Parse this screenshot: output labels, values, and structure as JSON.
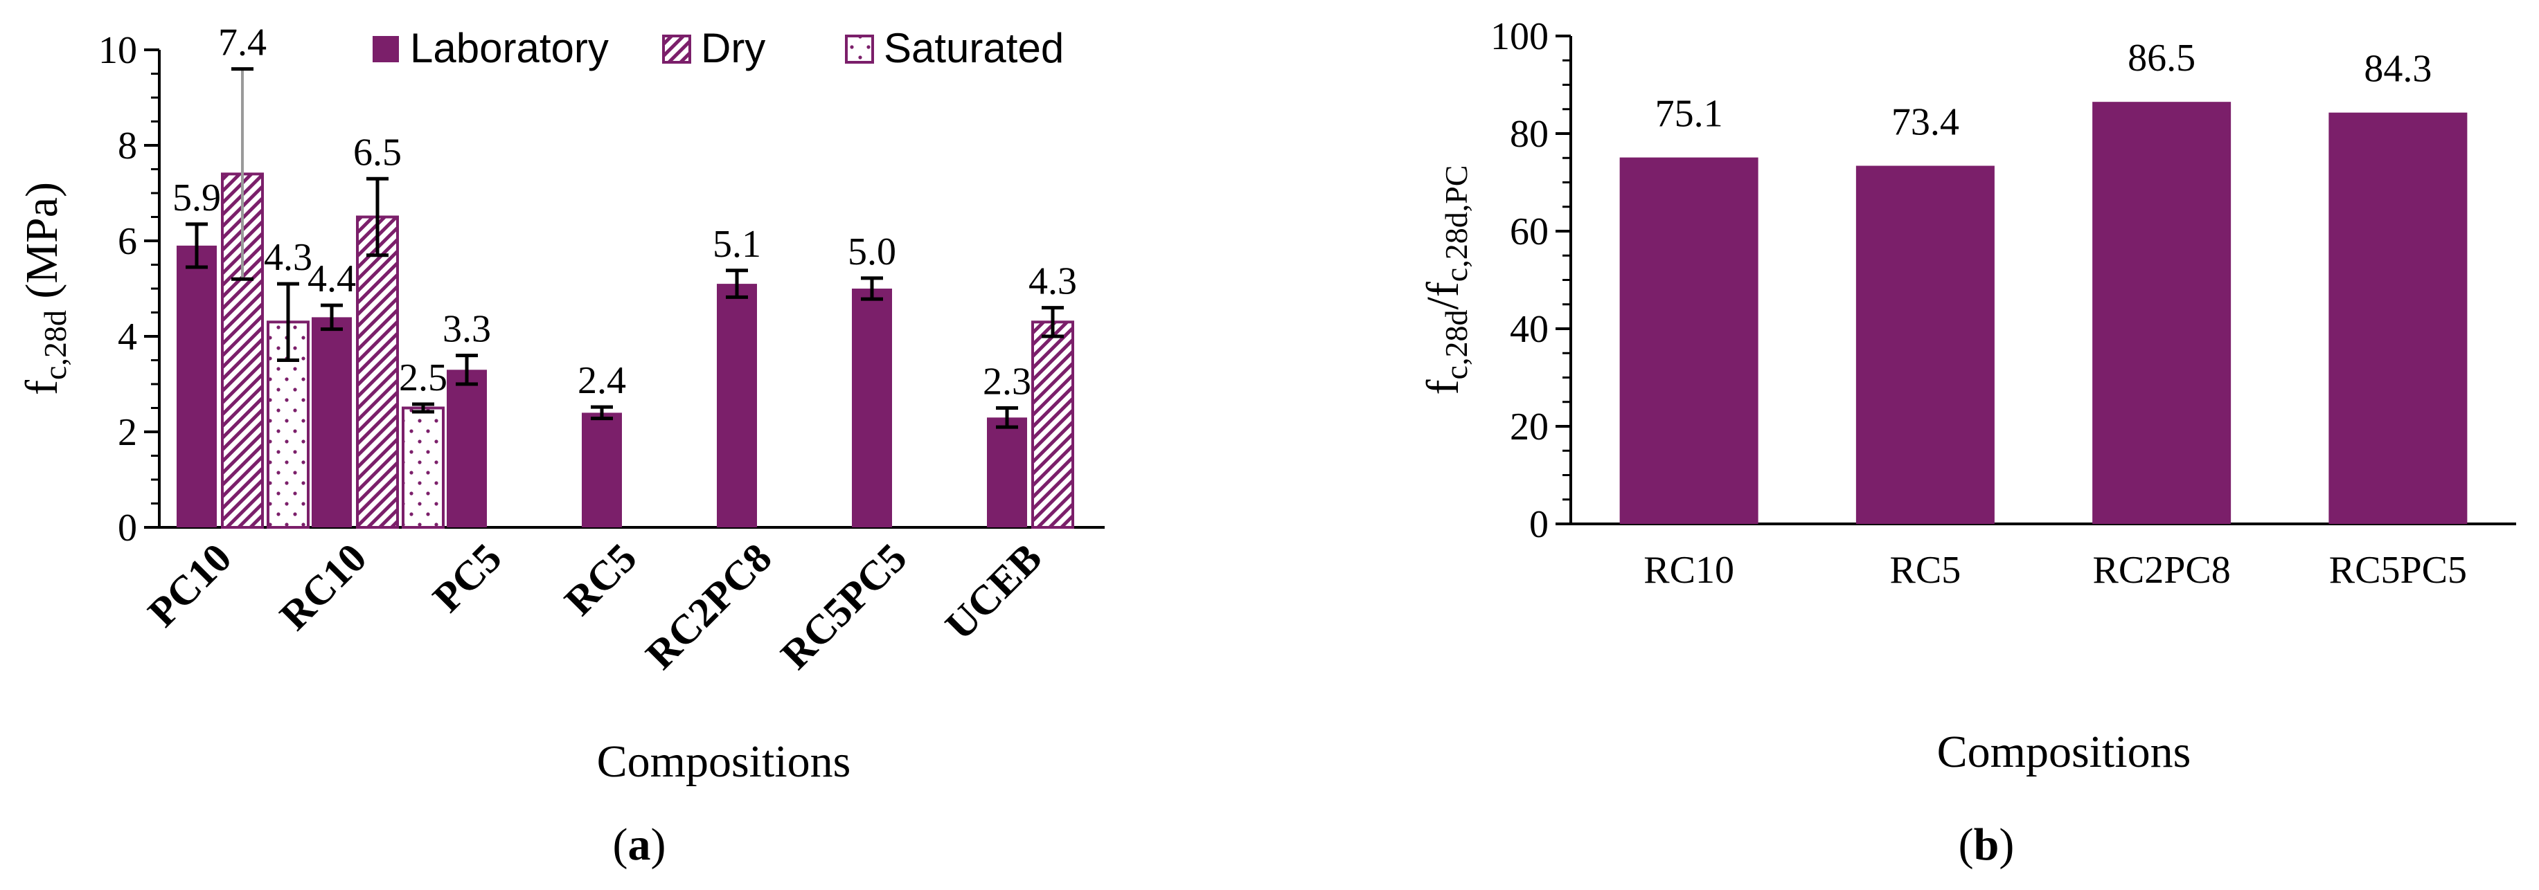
{
  "colors": {
    "primary": "#7b1f6a",
    "axis": "#000000",
    "error": "#000000",
    "error_light": "#9a9a9a"
  },
  "chart_data": [
    {
      "type": "bar",
      "panel_label_prefix": "(",
      "panel_label_letter": "a",
      "panel_label_suffix": ")",
      "title": "",
      "categories": [
        "PC10",
        "RC10",
        "PC5",
        "RC5",
        "RC2PC8",
        "RC5PC5",
        "UCEB"
      ],
      "series": [
        {
          "name": "Laboratory",
          "pattern": "solid",
          "values": [
            5.9,
            4.4,
            3.3,
            2.4,
            5.1,
            5.0,
            2.3
          ],
          "errors": [
            0.45,
            0.25,
            0.3,
            0.12,
            0.28,
            0.22,
            0.2
          ],
          "labels": [
            "5.9",
            "4.4",
            "3.3",
            "2.4",
            "5.1",
            "5.0",
            "2.3"
          ]
        },
        {
          "name": "Dry",
          "pattern": "hatch",
          "values": [
            7.4,
            6.5,
            null,
            null,
            null,
            null,
            4.3
          ],
          "errors": [
            2.2,
            0.8,
            null,
            null,
            null,
            null,
            0.3
          ],
          "labels": [
            "7.4",
            "6.5",
            null,
            null,
            null,
            null,
            "4.3"
          ]
        },
        {
          "name": "Saturated",
          "pattern": "dots",
          "values": [
            4.3,
            2.5,
            null,
            null,
            null,
            null,
            null
          ],
          "errors": [
            0.8,
            0.08,
            null,
            null,
            null,
            null,
            null
          ],
          "labels": [
            "4.3",
            "2.5",
            null,
            null,
            null,
            null,
            null
          ]
        }
      ],
      "xlabel": "Compositions",
      "ylabel_main": "f",
      "ylabel_sub": "c,28d",
      "ylabel_unit": " (MPa)",
      "ylim": [
        0,
        10
      ],
      "yticks": [
        "0",
        "2",
        "4",
        "6",
        "8",
        "10"
      ],
      "ytick_values": [
        0,
        2,
        4,
        6,
        8,
        10
      ],
      "legend_position": "top"
    },
    {
      "type": "bar",
      "panel_label_prefix": "(",
      "panel_label_letter": "b",
      "panel_label_suffix": ")",
      "title": "",
      "categories": [
        "RC10",
        "RC5",
        "RC2PC8",
        "RC5PC5"
      ],
      "values": [
        75.1,
        73.4,
        86.5,
        84.3
      ],
      "labels": [
        "75.1",
        "73.4",
        "86.5",
        "84.3"
      ],
      "xlabel": "Compositions",
      "ylabel_main_1": "f",
      "ylabel_sub_1": "c,28d",
      "ylabel_slash": "/f",
      "ylabel_sub_2": "c,28d,PC",
      "ylim": [
        0,
        100
      ],
      "yticks": [
        "0",
        "20",
        "40",
        "60",
        "80",
        "100"
      ],
      "ytick_values": [
        0,
        20,
        40,
        60,
        80,
        100
      ]
    }
  ]
}
